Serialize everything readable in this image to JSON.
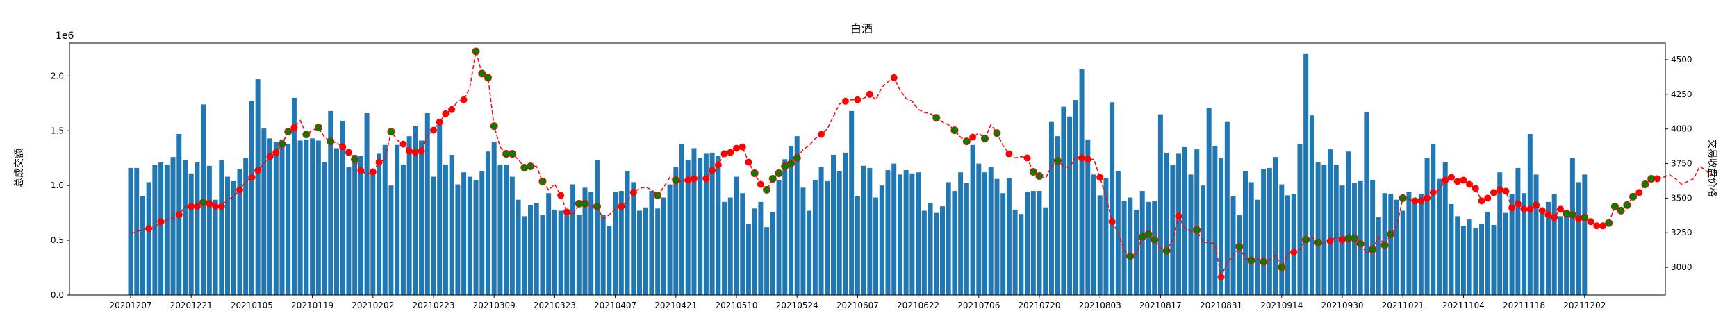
{
  "chart_data": {
    "type": "bar",
    "title": "白酒",
    "ylabel_left": "总成交额",
    "ylabel_right": "交易收盘价格",
    "left_axis_offset_label": "1e6",
    "left_scale": 1000000,
    "left_ylim": [
      0,
      2300000
    ],
    "right_ylim": [
      2800,
      4620
    ],
    "left_ticks": [
      0.0,
      0.5,
      1.0,
      1.5,
      2.0
    ],
    "left_tick_labels": [
      "0.0",
      "0.5",
      "1.0",
      "1.5",
      "2.0"
    ],
    "right_ticks": [
      3000,
      3250,
      3500,
      3750,
      4000,
      4250,
      4500
    ],
    "right_tick_labels": [
      "3000",
      "3250",
      "3500",
      "3750",
      "4000",
      "4250",
      "4500"
    ],
    "x_ticks": [
      "20201207",
      "20201221",
      "20210105",
      "20210119",
      "20210202",
      "20210223",
      "20210309",
      "20210323",
      "20210407",
      "20210421",
      "20210510",
      "20210524",
      "20210607",
      "20210622",
      "20210706",
      "20210720",
      "20210803",
      "20210817",
      "20210831",
      "20210914",
      "20210930",
      "20211021",
      "20211104",
      "20211118",
      "20211202"
    ],
    "x_tick_positions": [
      0,
      10,
      20,
      30,
      40,
      50,
      60,
      70,
      80,
      90,
      100,
      110,
      120,
      130,
      140,
      150,
      160,
      170,
      180,
      190,
      200,
      210,
      220,
      230,
      240
    ],
    "grid": false,
    "bar_color": "#1f77b4",
    "line_color": "#ff0000",
    "marker_down_color": "#ff0000",
    "marker_up_color": "#008000",
    "marker_up_outline": "#ff0000",
    "bars": [
      1160000,
      1160000,
      900000,
      1030000,
      1190000,
      1210000,
      1190000,
      1260000,
      1470000,
      1230000,
      1110000,
      1210000,
      1740000,
      1180000,
      870000,
      1230000,
      1080000,
      1040000,
      1150000,
      1250000,
      1770000,
      1970000,
      1520000,
      1430000,
      1400000,
      1420000,
      1380000,
      1800000,
      1410000,
      1420000,
      1430000,
      1410000,
      1210000,
      1680000,
      1340000,
      1590000,
      1170000,
      1280000,
      1270000,
      1660000,
      1130000,
      1290000,
      1370000,
      1000000,
      1370000,
      1190000,
      1450000,
      1540000,
      1410000,
      1660000,
      1080000,
      1610000,
      1190000,
      1280000,
      1010000,
      1120000,
      1080000,
      1050000,
      1130000,
      1310000,
      1400000,
      1190000,
      1190000,
      1080000,
      870000,
      720000,
      820000,
      840000,
      730000,
      930000,
      780000,
      770000,
      730000,
      1010000,
      730000,
      980000,
      940000,
      1230000,
      730000,
      630000,
      940000,
      950000,
      1130000,
      1030000,
      770000,
      800000,
      950000,
      790000,
      890000,
      1010000,
      1170000,
      1380000,
      1230000,
      1340000,
      1250000,
      1290000,
      1300000,
      1270000,
      850000,
      890000,
      1080000,
      930000,
      650000,
      790000,
      850000,
      620000,
      760000,
      1050000,
      1240000,
      1360000,
      1450000,
      980000,
      770000,
      1050000,
      1170000,
      1040000,
      1280000,
      1130000,
      1300000,
      1680000,
      900000,
      1180000,
      1160000,
      890000,
      1000000,
      1140000,
      1200000,
      1100000,
      1140000,
      1110000,
      1120000,
      770000,
      840000,
      750000,
      810000,
      1030000,
      950000,
      1120000,
      1020000,
      1370000,
      1200000,
      1120000,
      1170000,
      1060000,
      930000,
      1070000,
      780000,
      740000,
      940000,
      950000,
      950000,
      800000,
      1580000,
      1450000,
      1720000,
      1630000,
      1780000,
      2060000,
      1420000,
      1100000,
      910000,
      1070000,
      1760000,
      1130000,
      860000,
      890000,
      780000,
      950000,
      850000,
      860000,
      1650000,
      1300000,
      1190000,
      1290000,
      1350000,
      1100000,
      1330000,
      1000000,
      1710000,
      1360000,
      1250000,
      1580000,
      900000,
      730000,
      1130000,
      1030000,
      870000,
      1150000,
      1160000,
      1260000,
      1010000,
      910000,
      920000,
      1380000,
      2200000,
      1640000,
      1210000,
      1190000,
      1330000,
      1190000,
      1000000,
      1310000,
      1020000,
      1040000,
      1670000,
      1050000,
      710000,
      930000,
      920000,
      870000,
      770000,
      940000,
      880000,
      920000,
      1250000,
      1380000,
      1060000,
      1210000,
      830000,
      720000,
      630000,
      690000,
      610000,
      650000,
      760000,
      640000,
      1120000,
      750000,
      920000,
      1160000,
      930000,
      1470000,
      1100000,
      790000,
      850000,
      920000,
      720000,
      730000,
      1250000,
      1030000,
      1100000
    ],
    "close": [
      3240,
      3260,
      3270,
      3280,
      3290,
      3330,
      3340,
      3360,
      3380,
      3440,
      3440,
      3440,
      3470,
      3460,
      3440,
      3440,
      3490,
      3510,
      3560,
      3620,
      3650,
      3700,
      3750,
      3800,
      3830,
      3890,
      3980,
      4010,
      4060,
      3960,
      3990,
      4010,
      3940,
      3910,
      3900,
      3870,
      3830,
      3780,
      3700,
      3670,
      3690,
      3760,
      3780,
      3980,
      3920,
      3890,
      3840,
      3830,
      3840,
      3950,
      3990,
      4050,
      4110,
      4140,
      4200,
      4210,
      4300,
      4560,
      4400,
      4370,
      4020,
      3870,
      3820,
      3820,
      3780,
      3720,
      3730,
      3730,
      3620,
      3560,
      3600,
      3520,
      3400,
      3380,
      3460,
      3460,
      3440,
      3440,
      3350,
      3380,
      3420,
      3440,
      3480,
      3540,
      3570,
      3580,
      3560,
      3520,
      3580,
      3650,
      3630,
      3620,
      3630,
      3640,
      3650,
      3640,
      3700,
      3740,
      3820,
      3830,
      3860,
      3870,
      3760,
      3680,
      3600,
      3560,
      3640,
      3680,
      3730,
      3750,
      3790,
      3850,
      3880,
      3930,
      3960,
      4000,
      4090,
      4180,
      4200,
      4210,
      4210,
      4220,
      4250,
      4210,
      4300,
      4340,
      4370,
      4280,
      4220,
      4200,
      4140,
      4120,
      4110,
      4080,
      4050,
      4030,
      3990,
      3940,
      3910,
      3940,
      3970,
      3930,
      4030,
      3970,
      3880,
      3820,
      3790,
      3800,
      3790,
      3690,
      3660,
      3640,
      3730,
      3770,
      3730,
      3720,
      3800,
      3790,
      3780,
      3780,
      3650,
      3510,
      3330,
      3250,
      3120,
      3080,
      3100,
      3220,
      3240,
      3200,
      3140,
      3120,
      3200,
      3370,
      3280,
      3260,
      3270,
      3180,
      3180,
      3170,
      2930,
      3040,
      3080,
      3150,
      3060,
      3050,
      3060,
      3040,
      3050,
      3090,
      3000,
      3100,
      3110,
      3130,
      3200,
      3220,
      3180,
      3170,
      3190,
      3220,
      3200,
      3210,
      3210,
      3170,
      3100,
      3130,
      3220,
      3160,
      3240,
      3300,
      3500,
      3490,
      3480,
      3480,
      3500,
      3540,
      3560,
      3630,
      3650,
      3620,
      3630,
      3600,
      3570,
      3480,
      3500,
      3540,
      3560,
      3550,
      3430,
      3460,
      3420,
      3420,
      3450,
      3410,
      3380,
      3360,
      3420,
      3390,
      3380,
      3350,
      3360,
      3330,
      3300,
      3300,
      3320,
      3440,
      3410,
      3450,
      3510,
      3540,
      3600,
      3640,
      3640,
      3650,
      3670,
      3640,
      3600,
      3620,
      3640,
      3730,
      3700,
      3660
    ],
    "markers": [
      {
        "i": 3,
        "c": "r"
      },
      {
        "i": 5,
        "c": "r"
      },
      {
        "i": 8,
        "c": "r"
      },
      {
        "i": 10,
        "c": "r"
      },
      {
        "i": 11,
        "c": "r"
      },
      {
        "i": 12,
        "c": "g"
      },
      {
        "i": 13,
        "c": "r"
      },
      {
        "i": 14,
        "c": "r"
      },
      {
        "i": 15,
        "c": "r"
      },
      {
        "i": 18,
        "c": "r"
      },
      {
        "i": 20,
        "c": "r"
      },
      {
        "i": 21,
        "c": "r"
      },
      {
        "i": 23,
        "c": "r"
      },
      {
        "i": 24,
        "c": "r"
      },
      {
        "i": 25,
        "c": "g"
      },
      {
        "i": 26,
        "c": "g"
      },
      {
        "i": 27,
        "c": "r"
      },
      {
        "i": 29,
        "c": "g"
      },
      {
        "i": 31,
        "c": "g"
      },
      {
        "i": 33,
        "c": "g"
      },
      {
        "i": 35,
        "c": "r"
      },
      {
        "i": 36,
        "c": "r"
      },
      {
        "i": 37,
        "c": "g"
      },
      {
        "i": 38,
        "c": "r"
      },
      {
        "i": 40,
        "c": "r"
      },
      {
        "i": 41,
        "c": "r"
      },
      {
        "i": 43,
        "c": "g"
      },
      {
        "i": 45,
        "c": "r"
      },
      {
        "i": 46,
        "c": "r"
      },
      {
        "i": 47,
        "c": "r"
      },
      {
        "i": 48,
        "c": "r"
      },
      {
        "i": 50,
        "c": "r"
      },
      {
        "i": 51,
        "c": "r"
      },
      {
        "i": 52,
        "c": "r"
      },
      {
        "i": 53,
        "c": "r"
      },
      {
        "i": 55,
        "c": "r"
      },
      {
        "i": 57,
        "c": "g"
      },
      {
        "i": 58,
        "c": "g"
      },
      {
        "i": 59,
        "c": "g"
      },
      {
        "i": 60,
        "c": "g"
      },
      {
        "i": 62,
        "c": "g"
      },
      {
        "i": 63,
        "c": "g"
      },
      {
        "i": 65,
        "c": "g"
      },
      {
        "i": 66,
        "c": "g"
      },
      {
        "i": 68,
        "c": "g"
      },
      {
        "i": 71,
        "c": "r"
      },
      {
        "i": 72,
        "c": "r"
      },
      {
        "i": 74,
        "c": "g"
      },
      {
        "i": 75,
        "c": "g"
      },
      {
        "i": 77,
        "c": "g"
      },
      {
        "i": 81,
        "c": "r"
      },
      {
        "i": 83,
        "c": "r"
      },
      {
        "i": 87,
        "c": "g"
      },
      {
        "i": 90,
        "c": "g"
      },
      {
        "i": 92,
        "c": "r"
      },
      {
        "i": 93,
        "c": "r"
      },
      {
        "i": 95,
        "c": "r"
      },
      {
        "i": 96,
        "c": "r"
      },
      {
        "i": 97,
        "c": "r"
      },
      {
        "i": 98,
        "c": "r"
      },
      {
        "i": 99,
        "c": "r"
      },
      {
        "i": 100,
        "c": "r"
      },
      {
        "i": 101,
        "c": "r"
      },
      {
        "i": 102,
        "c": "r"
      },
      {
        "i": 103,
        "c": "g"
      },
      {
        "i": 104,
        "c": "r"
      },
      {
        "i": 105,
        "c": "g"
      },
      {
        "i": 106,
        "c": "g"
      },
      {
        "i": 107,
        "c": "g"
      },
      {
        "i": 108,
        "c": "g"
      },
      {
        "i": 109,
        "c": "g"
      },
      {
        "i": 110,
        "c": "g"
      },
      {
        "i": 114,
        "c": "r"
      },
      {
        "i": 118,
        "c": "r"
      },
      {
        "i": 120,
        "c": "r"
      },
      {
        "i": 122,
        "c": "r"
      },
      {
        "i": 126,
        "c": "r"
      },
      {
        "i": 133,
        "c": "g"
      },
      {
        "i": 136,
        "c": "g"
      },
      {
        "i": 138,
        "c": "g"
      },
      {
        "i": 139,
        "c": "r"
      },
      {
        "i": 141,
        "c": "g"
      },
      {
        "i": 143,
        "c": "g"
      },
      {
        "i": 145,
        "c": "r"
      },
      {
        "i": 148,
        "c": "r"
      },
      {
        "i": 149,
        "c": "g"
      },
      {
        "i": 150,
        "c": "g"
      },
      {
        "i": 153,
        "c": "g"
      },
      {
        "i": 157,
        "c": "r"
      },
      {
        "i": 158,
        "c": "r"
      },
      {
        "i": 160,
        "c": "r"
      },
      {
        "i": 162,
        "c": "r"
      },
      {
        "i": 165,
        "c": "g"
      },
      {
        "i": 167,
        "c": "g"
      },
      {
        "i": 168,
        "c": "g"
      },
      {
        "i": 169,
        "c": "g"
      },
      {
        "i": 171,
        "c": "g"
      },
      {
        "i": 173,
        "c": "r"
      },
      {
        "i": 176,
        "c": "g"
      },
      {
        "i": 180,
        "c": "r"
      },
      {
        "i": 183,
        "c": "g"
      },
      {
        "i": 185,
        "c": "g"
      },
      {
        "i": 187,
        "c": "g"
      },
      {
        "i": 190,
        "c": "g"
      },
      {
        "i": 192,
        "c": "r"
      },
      {
        "i": 194,
        "c": "g"
      },
      {
        "i": 196,
        "c": "g"
      },
      {
        "i": 198,
        "c": "r"
      },
      {
        "i": 200,
        "c": "r"
      },
      {
        "i": 201,
        "c": "g"
      },
      {
        "i": 202,
        "c": "g"
      },
      {
        "i": 203,
        "c": "g"
      },
      {
        "i": 205,
        "c": "g"
      },
      {
        "i": 207,
        "c": "g"
      },
      {
        "i": 208,
        "c": "g"
      },
      {
        "i": 210,
        "c": "g"
      },
      {
        "i": 212,
        "c": "r"
      },
      {
        "i": 213,
        "c": "r"
      },
      {
        "i": 214,
        "c": "r"
      },
      {
        "i": 215,
        "c": "r"
      },
      {
        "i": 217,
        "c": "r"
      },
      {
        "i": 218,
        "c": "r"
      },
      {
        "i": 219,
        "c": "r"
      },
      {
        "i": 220,
        "c": "r"
      },
      {
        "i": 221,
        "c": "r"
      },
      {
        "i": 222,
        "c": "r"
      },
      {
        "i": 223,
        "c": "r"
      },
      {
        "i": 224,
        "c": "r"
      },
      {
        "i": 225,
        "c": "r"
      },
      {
        "i": 226,
        "c": "r"
      },
      {
        "i": 227,
        "c": "r"
      },
      {
        "i": 228,
        "c": "r"
      },
      {
        "i": 229,
        "c": "r"
      },
      {
        "i": 230,
        "c": "r"
      },
      {
        "i": 231,
        "c": "r"
      },
      {
        "i": 232,
        "c": "r"
      },
      {
        "i": 233,
        "c": "r"
      },
      {
        "i": 234,
        "c": "r"
      },
      {
        "i": 235,
        "c": "r"
      },
      {
        "i": 236,
        "c": "r"
      },
      {
        "i": 237,
        "c": "g"
      },
      {
        "i": 238,
        "c": "g"
      },
      {
        "i": 239,
        "c": "r"
      },
      {
        "i": 240,
        "c": "g"
      },
      {
        "i": 241,
        "c": "r"
      },
      {
        "i": 242,
        "c": "r"
      },
      {
        "i": 243,
        "c": "r"
      },
      {
        "i": 244,
        "c": "g"
      },
      {
        "i": 245,
        "c": "g"
      },
      {
        "i": 246,
        "c": "g"
      },
      {
        "i": 247,
        "c": "g"
      },
      {
        "i": 248,
        "c": "g"
      },
      {
        "i": 249,
        "c": "r"
      },
      {
        "i": 250,
        "c": "g"
      },
      {
        "i": 251,
        "c": "g"
      },
      {
        "i": 252,
        "c": "r"
      }
    ]
  }
}
